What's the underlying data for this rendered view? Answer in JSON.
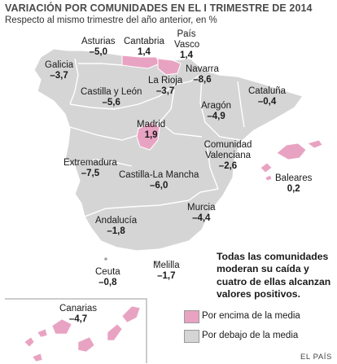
{
  "title": "VARIACIÓN POR COMUNIDADES EN EL I TRIMESTRE DE 2014",
  "subtitle": "Respecto al mismo trimestre del año anterior, en %",
  "colors": {
    "above": "#e9a3c2",
    "below": "#d5d5d5",
    "sea": "#ffffff",
    "border": "#ffffff"
  },
  "regions": [
    {
      "id": "galicia",
      "name": "Galicia",
      "value": "–3,7",
      "above": false
    },
    {
      "id": "asturias",
      "name": "Asturias",
      "value": "–5,0",
      "above": false
    },
    {
      "id": "cantabria",
      "name": "Cantabria",
      "value": "1,4",
      "above": true
    },
    {
      "id": "pais-vasco",
      "name": "País Vasco",
      "value": "1,4",
      "above": true
    },
    {
      "id": "navarra",
      "name": "Navarra",
      "value": "–8,6",
      "above": false
    },
    {
      "id": "la-rioja",
      "name": "La Rioja",
      "value": "–3,7",
      "above": false
    },
    {
      "id": "cataluna",
      "name": "Cataluña",
      "value": "–0,4",
      "above": false
    },
    {
      "id": "castilla-leon",
      "name": "Castilla y León",
      "value": "–5,6",
      "above": false
    },
    {
      "id": "aragon",
      "name": "Aragón",
      "value": "–4,9",
      "above": false
    },
    {
      "id": "madrid",
      "name": "Madrid",
      "value": "1,9",
      "above": true
    },
    {
      "id": "comunidad-valenciana",
      "name": "Comunidad Valenciana",
      "value": "–2,6",
      "above": false
    },
    {
      "id": "extremadura",
      "name": "Extremadura",
      "value": "–7,5",
      "above": false
    },
    {
      "id": "castilla-la-mancha",
      "name": "Castilla-La Mancha",
      "value": "–6,0",
      "above": false
    },
    {
      "id": "baleares",
      "name": "Baleares",
      "value": "0,2",
      "above": true
    },
    {
      "id": "murcia",
      "name": "Murcia",
      "value": "–4,4",
      "above": false
    },
    {
      "id": "andalucia",
      "name": "Andalucía",
      "value": "–1,8",
      "above": false
    },
    {
      "id": "ceuta",
      "name": "Ceuta",
      "value": "–0,8",
      "above": false
    },
    {
      "id": "melilla",
      "name": "Melilla",
      "value": "–1,7",
      "above": false
    },
    {
      "id": "canarias",
      "name": "Canarias",
      "value": "–4,7",
      "above": false
    }
  ],
  "note": "Todas las comunidades moderan su caída y cuatro de ellas alcanzan valores positivos.",
  "legend": [
    {
      "label": "Por encima de la media",
      "color": "#e9a3c2"
    },
    {
      "label": "Por debajo de la media",
      "color": "#d5d5d5"
    }
  ],
  "source": "EL PAÍS"
}
